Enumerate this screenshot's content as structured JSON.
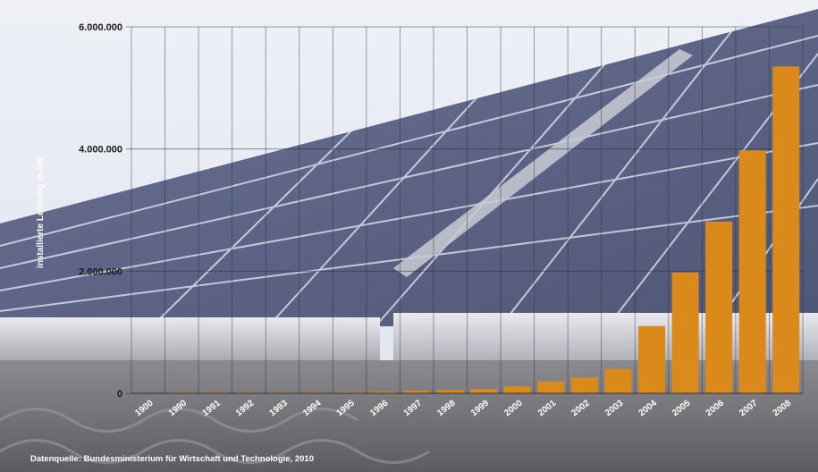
{
  "chart_data": {
    "type": "bar",
    "ylabel": "installierte Leistung in kW",
    "xlabel": "",
    "ylim": [
      0,
      6000000
    ],
    "yticks": [
      0,
      2000000,
      4000000,
      6000000
    ],
    "ytick_labels": [
      "0",
      "2.000.000",
      "4.000.000",
      "6.000.000"
    ],
    "categories": [
      "1900",
      "1990",
      "1991",
      "1992",
      "1993",
      "1994",
      "1995",
      "1996",
      "1997",
      "1998",
      "1999",
      "2000",
      "2001",
      "2002",
      "2003",
      "2004",
      "2005",
      "2006",
      "2007",
      "2008"
    ],
    "values": [
      0,
      2000,
      3000,
      6000,
      9000,
      12000,
      18000,
      28000,
      42000,
      54000,
      70000,
      114000,
      195000,
      260000,
      400000,
      1100000,
      1980000,
      2812000,
      3977000,
      5351000
    ],
    "grid": true,
    "bar_color": "#d98a1a",
    "source": "Datenquelle: Bundesministerium für Wirtschaft und Technologie, 2010"
  }
}
